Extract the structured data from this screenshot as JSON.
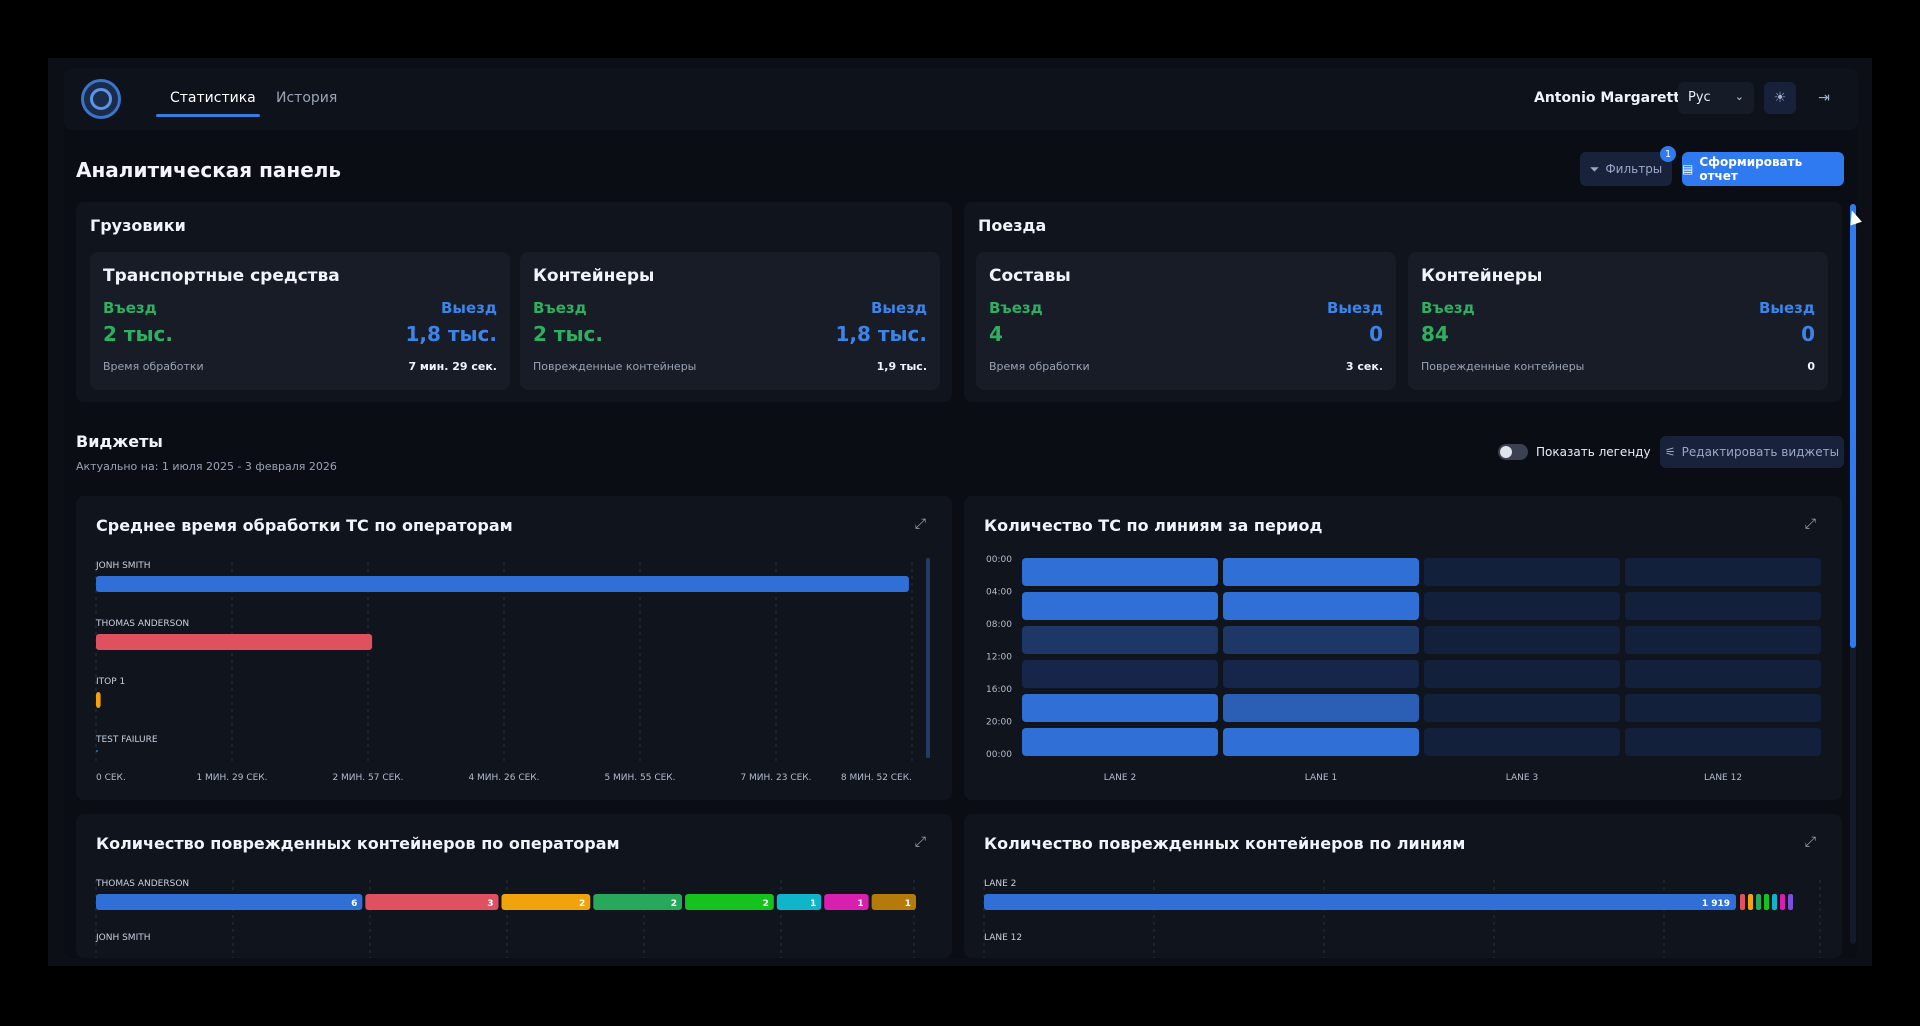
{
  "header": {
    "tabs": [
      {
        "label": "Статистика"
      },
      {
        "label": "История"
      }
    ],
    "user": "Antonio Margaretti",
    "language": "Рус"
  },
  "page": {
    "title": "Аналитическая панель",
    "filters_label": "Фильтры",
    "filters_count": "1",
    "report_label": "Сформировать отчет"
  },
  "trucks": {
    "title": "Грузовики",
    "vehicles": {
      "title": "Транспортные средства",
      "in_label": "Въезд",
      "out_label": "Выезд",
      "in_value": "2 тыс.",
      "out_value": "1,8 тыс.",
      "foot_label": "Время обработки",
      "foot_value": "7 мин. 29 сек."
    },
    "containers": {
      "title": "Контейнеры",
      "in_label": "Въезд",
      "out_label": "Выезд",
      "in_value": "2 тыс.",
      "out_value": "1,8 тыс.",
      "foot_label": "Поврежденные контейнеры",
      "foot_value": "1,9 тыс."
    }
  },
  "trains": {
    "title": "Поезда",
    "compositions": {
      "title": "Составы",
      "in_label": "Въезд",
      "out_label": "Выезд",
      "in_value": "4",
      "out_value": "0",
      "foot_label": "Время обработки",
      "foot_value": "3 сек."
    },
    "containers": {
      "title": "Контейнеры",
      "in_label": "Въезд",
      "out_label": "Выезд",
      "in_value": "84",
      "out_value": "0",
      "foot_label": "Поврежденные контейнеры",
      "foot_value": "0"
    }
  },
  "widgets": {
    "title": "Виджеты",
    "actual": "Актуально на: 1 июля 2025 - 3 февраля 2026",
    "legend_toggle": "Показать легенду",
    "edit_label": "Редактировать виджеты"
  },
  "chart_data": [
    {
      "type": "bar",
      "title": "Среднее время обработки ТС по операторам",
      "categories": [
        "JONH SMITH",
        "THOMAS ANDERSON",
        "ITOP 1",
        "TEST FAILURE"
      ],
      "values_seconds": [
        530,
        180,
        3,
        0
      ],
      "colors": [
        "#2f6fd6",
        "#e0515f",
        "#f0a30a",
        "#2f6fd6"
      ],
      "x_ticks": [
        "0 СЕК.",
        "1 МИН. 29 СЕК.",
        "2 МИН. 57 СЕК.",
        "4 МИН. 26 СЕК.",
        "5 МИН. 55 СЕК.",
        "7 МИН. 23 СЕК.",
        "8 МИН. 52 СЕК."
      ],
      "xlim": [
        0,
        532
      ]
    },
    {
      "type": "heatmap",
      "title": "Количество ТС по линиям за период",
      "rows": [
        "00:00",
        "04:00",
        "08:00",
        "12:00",
        "16:00",
        "20:00",
        "00:00"
      ],
      "columns": [
        "LANE 2",
        "LANE 1",
        "LANE 3",
        "LANE 12"
      ],
      "intensity": [
        [
          1,
          1,
          0,
          0
        ],
        [
          1,
          1,
          0,
          0
        ],
        [
          0.3,
          0.3,
          0,
          0
        ],
        [
          0.1,
          0.1,
          0,
          0
        ],
        [
          1,
          0.75,
          0,
          0
        ],
        [
          1,
          1,
          0,
          0
        ]
      ]
    },
    {
      "type": "bar",
      "stacked": true,
      "title": "Количество поврежденных контейнеров по операторам",
      "categories": [
        "THOMAS ANDERSON",
        "JONH SMITH"
      ],
      "segments": [
        {
          "value": 6,
          "color": "#2f6fd6"
        },
        {
          "value": 3,
          "color": "#e0515f"
        },
        {
          "value": 2,
          "color": "#f0a30a"
        },
        {
          "value": 2,
          "color": "#28a85a"
        },
        {
          "value": 2,
          "color": "#16c21e"
        },
        {
          "value": 1,
          "color": "#10b5c9"
        },
        {
          "value": 1,
          "color": "#d81fb0"
        },
        {
          "value": 1,
          "color": "#b47a0c"
        }
      ]
    },
    {
      "type": "bar",
      "stacked": true,
      "title": "Количество поврежденных контейнеров по линиям",
      "categories": [
        "LANE 2",
        "LANE 12"
      ],
      "main_value": "1 919",
      "small_segment_colors": [
        "#e0515f",
        "#f0a30a",
        "#28a85a",
        "#16c21e",
        "#10b5c9",
        "#d81fb0",
        "#7b4fe0"
      ]
    }
  ]
}
